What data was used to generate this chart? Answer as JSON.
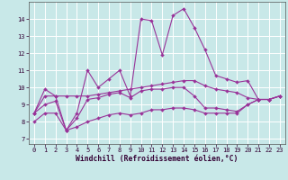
{
  "xlabel": "Windchill (Refroidissement éolien,°C)",
  "bg_color": "#c8e8e8",
  "line_color": "#993399",
  "grid_color": "#ffffff",
  "xlim": [
    -0.5,
    23.5
  ],
  "ylim": [
    6.7,
    15.0
  ],
  "xticks": [
    0,
    1,
    2,
    3,
    4,
    5,
    6,
    7,
    8,
    9,
    10,
    11,
    12,
    13,
    14,
    15,
    16,
    17,
    18,
    19,
    20,
    21,
    22,
    23
  ],
  "yticks": [
    7,
    8,
    9,
    10,
    11,
    12,
    13,
    14
  ],
  "lines": [
    [
      8.5,
      9.9,
      9.5,
      7.5,
      8.5,
      11.0,
      10.0,
      10.5,
      11.0,
      9.5,
      14.0,
      13.9,
      11.9,
      14.2,
      14.6,
      13.5,
      12.2,
      10.7,
      10.5,
      10.3,
      10.4,
      9.3,
      9.3,
      9.5
    ],
    [
      8.5,
      9.5,
      9.5,
      9.5,
      9.5,
      9.5,
      9.6,
      9.7,
      9.8,
      9.9,
      10.0,
      10.1,
      10.2,
      10.3,
      10.4,
      10.4,
      10.1,
      9.9,
      9.8,
      9.7,
      9.4,
      9.3,
      9.3,
      9.5
    ],
    [
      8.5,
      9.0,
      9.2,
      7.5,
      8.2,
      9.3,
      9.4,
      9.6,
      9.7,
      9.4,
      9.8,
      9.9,
      9.9,
      10.0,
      10.0,
      9.5,
      8.8,
      8.8,
      8.7,
      8.6,
      9.0,
      9.3,
      9.3,
      9.5
    ],
    [
      8.0,
      8.5,
      8.5,
      7.5,
      7.7,
      8.0,
      8.2,
      8.4,
      8.5,
      8.4,
      8.5,
      8.7,
      8.7,
      8.8,
      8.8,
      8.7,
      8.5,
      8.5,
      8.5,
      8.5,
      9.0,
      9.3,
      9.3,
      9.5
    ]
  ]
}
